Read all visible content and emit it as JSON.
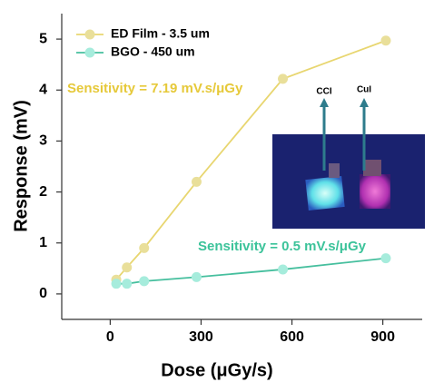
{
  "chart_data": {
    "type": "line",
    "x_label": "Dose (μGy/s)",
    "y_label": "Response (mV)",
    "series": [
      {
        "name": "ED Film - 3.5 um",
        "color": "#e8d670",
        "marker_color": "#e9df9a",
        "x": [
          20,
          55,
          112,
          285,
          570,
          910
        ],
        "values": [
          0.28,
          0.52,
          0.9,
          2.2,
          4.22,
          4.97
        ]
      },
      {
        "name": "BGO - 450 um",
        "color": "#46bf9e",
        "marker_color": "#a6ecdc",
        "x": [
          20,
          55,
          112,
          285,
          570,
          910
        ],
        "values": [
          0.2,
          0.2,
          0.25,
          0.33,
          0.48,
          0.7
        ]
      }
    ],
    "annotations": [
      {
        "text": "Sensitivity = 7.19 mV.s/μGy",
        "color": "#e6c93a"
      },
      {
        "text": "Sensitivity = 0.5 mV.s/μGy",
        "color": "#3cc39a"
      }
    ],
    "inset_labels": [
      "CCI",
      "CuI"
    ],
    "xlim": [
      -160,
      1030
    ],
    "xticks": [
      0,
      300,
      600,
      900
    ],
    "ylim": [
      -0.5,
      5.5
    ],
    "yticks": [
      0,
      1,
      2,
      3,
      4,
      5
    ],
    "legend": "upper left"
  }
}
